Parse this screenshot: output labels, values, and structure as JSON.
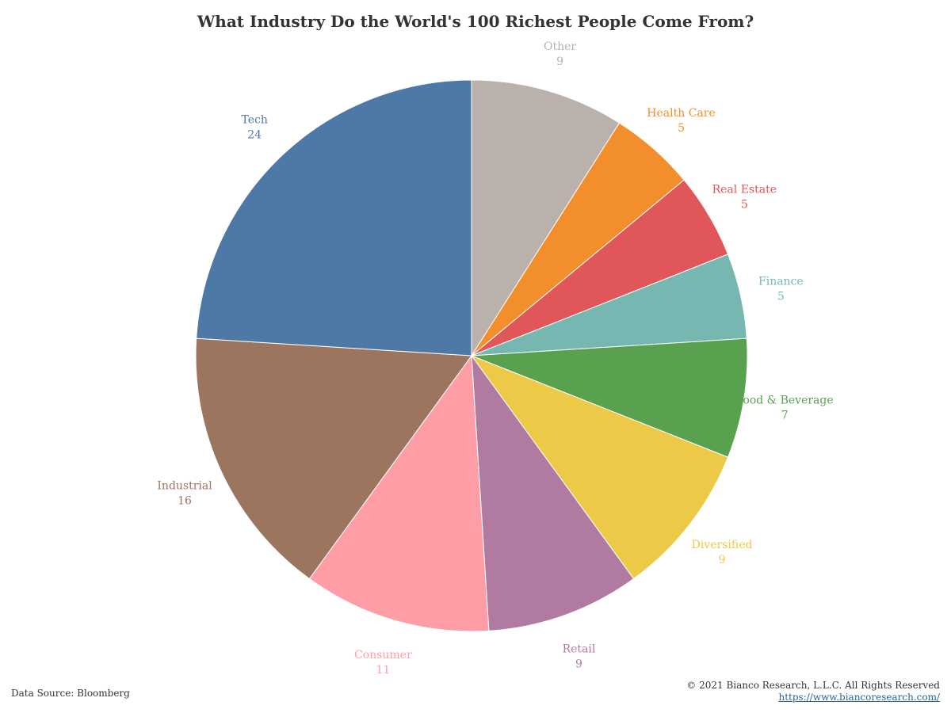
{
  "chart_data": {
    "type": "pie",
    "title": "What Industry Do the World's 100 Richest People Come From?",
    "slices": [
      {
        "label": "Other",
        "value": 9,
        "color": "#bab0ac"
      },
      {
        "label": "Health Care",
        "value": 5,
        "color": "#f28e2b"
      },
      {
        "label": "Real Estate",
        "value": 5,
        "color": "#e15759"
      },
      {
        "label": "Finance",
        "value": 5,
        "color": "#76b7b2"
      },
      {
        "label": "Food & Beverage",
        "value": 7,
        "color": "#59a14f"
      },
      {
        "label": "Diversified",
        "value": 9,
        "color": "#edc948"
      },
      {
        "label": "Retail",
        "value": 9,
        "color": "#b07aa1"
      },
      {
        "label": "Consumer",
        "value": 11,
        "color": "#ff9da7"
      },
      {
        "label": "Industrial",
        "value": 16,
        "color": "#9c755f"
      },
      {
        "label": "Tech",
        "value": 24,
        "color": "#4e79a7"
      }
    ],
    "legend": "none"
  },
  "footer": {
    "source": "Data Source: Bloomberg",
    "copyright": "© 2021 Bianco Research, L.L.C. All Rights Reserved",
    "link": "https://www.biancoresearch.com/"
  }
}
